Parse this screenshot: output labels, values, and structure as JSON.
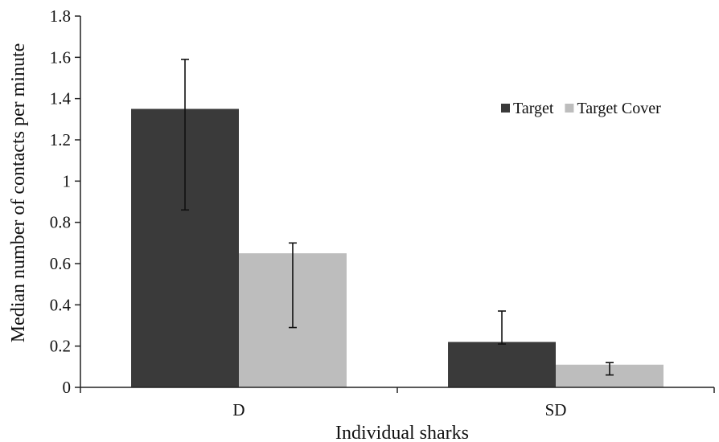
{
  "chart_data": {
    "type": "bar",
    "title": "",
    "xlabel": "Individual sharks",
    "ylabel": "Median number of contacts per minute",
    "categories": [
      "D",
      "SD"
    ],
    "ylim": [
      0,
      1.8
    ],
    "yticks": [
      "0",
      "0.2",
      "0.4",
      "0.6",
      "0.8",
      "1",
      "1.2",
      "1.4",
      "1.6",
      "1.8"
    ],
    "grid": false,
    "legend_position": "top-right",
    "series": [
      {
        "name": "Target",
        "color": "#3a3a3a",
        "values": [
          1.35,
          0.22
        ],
        "error_low": [
          0.86,
          0.21
        ],
        "error_high": [
          1.59,
          0.37
        ]
      },
      {
        "name": "Target Cover",
        "color": "#bdbdbd",
        "values": [
          0.65,
          0.11
        ],
        "error_low": [
          0.29,
          0.06
        ],
        "error_high": [
          0.7,
          0.12
        ]
      }
    ]
  }
}
